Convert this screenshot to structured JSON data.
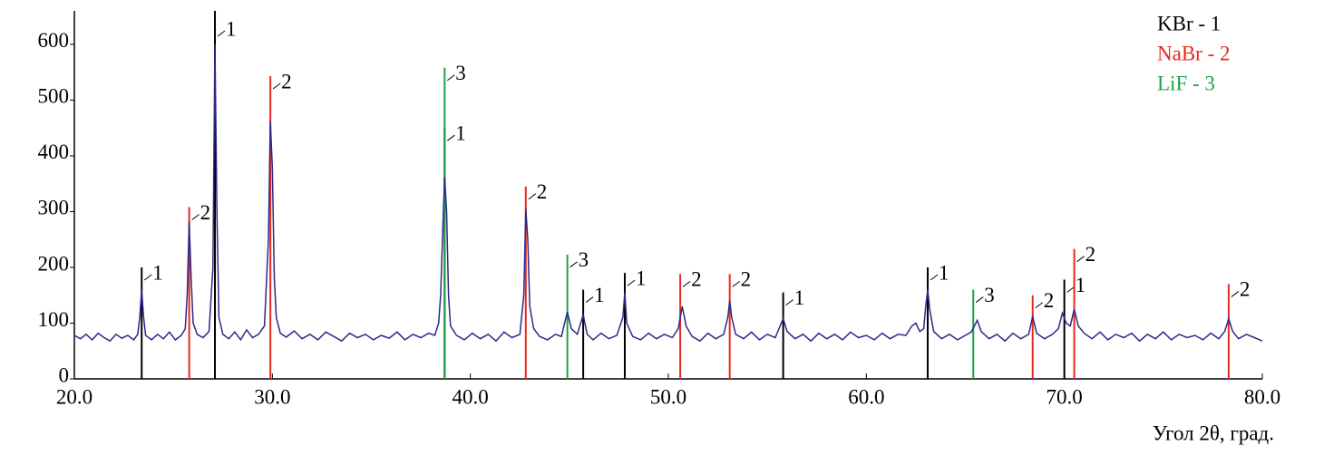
{
  "chart_data": {
    "type": "line",
    "xlabel": "Угол 2θ, град.",
    "xlim": [
      20,
      80
    ],
    "ylim": [
      0,
      660
    ],
    "xticks": [
      {
        "value": 20,
        "label": "20.0"
      },
      {
        "value": 30,
        "label": "30.0"
      },
      {
        "value": 40,
        "label": "40.0"
      },
      {
        "value": 50,
        "label": "50.0"
      },
      {
        "value": 60,
        "label": "60.0"
      },
      {
        "value": 70,
        "label": "70.0"
      },
      {
        "value": 80,
        "label": "80.0"
      }
    ],
    "yticks": [
      0,
      100,
      200,
      300,
      400,
      500,
      600
    ],
    "series": [
      {
        "color": "#2b2a86",
        "x": [
          20.0,
          20.3,
          20.6,
          20.9,
          21.2,
          21.5,
          21.8,
          22.1,
          22.4,
          22.7,
          23.0,
          23.2,
          23.3,
          23.4,
          23.5,
          23.6,
          23.9,
          24.2,
          24.5,
          24.8,
          25.1,
          25.4,
          25.6,
          25.7,
          25.8,
          25.9,
          26.0,
          26.2,
          26.5,
          26.8,
          27.0,
          27.1,
          27.2,
          27.3,
          27.5,
          27.8,
          28.1,
          28.4,
          28.7,
          29.0,
          29.3,
          29.6,
          29.8,
          29.9,
          30.0,
          30.1,
          30.2,
          30.4,
          30.7,
          31.1,
          31.5,
          31.9,
          32.3,
          32.7,
          33.1,
          33.5,
          33.9,
          34.3,
          34.7,
          35.1,
          35.5,
          35.9,
          36.3,
          36.7,
          37.1,
          37.5,
          37.9,
          38.2,
          38.4,
          38.5,
          38.6,
          38.7,
          38.8,
          38.9,
          39.0,
          39.3,
          39.7,
          40.1,
          40.5,
          40.9,
          41.3,
          41.7,
          42.1,
          42.5,
          42.7,
          42.8,
          42.9,
          43.0,
          43.2,
          43.5,
          43.9,
          44.3,
          44.6,
          44.9,
          45.1,
          45.4,
          45.7,
          45.9,
          46.2,
          46.6,
          47.0,
          47.4,
          47.7,
          47.8,
          47.9,
          48.2,
          48.6,
          49.0,
          49.4,
          49.8,
          50.2,
          50.5,
          50.7,
          50.9,
          51.2,
          51.6,
          52.0,
          52.4,
          52.8,
          53.0,
          53.1,
          53.2,
          53.4,
          53.8,
          54.2,
          54.6,
          55.0,
          55.4,
          55.7,
          55.8,
          56.0,
          56.4,
          56.8,
          57.2,
          57.6,
          58.0,
          58.4,
          58.8,
          59.2,
          59.6,
          60.0,
          60.4,
          60.8,
          61.2,
          61.6,
          62.0,
          62.3,
          62.5,
          62.7,
          62.9,
          63.0,
          63.1,
          63.2,
          63.4,
          63.8,
          64.2,
          64.6,
          65.0,
          65.3,
          65.6,
          65.8,
          66.2,
          66.6,
          67.0,
          67.4,
          67.8,
          68.2,
          68.4,
          68.6,
          69.0,
          69.4,
          69.7,
          69.9,
          70.1,
          70.3,
          70.5,
          70.7,
          71.0,
          71.4,
          71.8,
          72.2,
          72.6,
          73.0,
          73.4,
          73.8,
          74.2,
          74.6,
          75.0,
          75.4,
          75.8,
          76.2,
          76.6,
          77.0,
          77.4,
          77.8,
          78.1,
          78.3,
          78.5,
          78.8,
          79.2,
          79.6,
          80.0
        ],
        "values": [
          78,
          72,
          80,
          70,
          82,
          74,
          68,
          80,
          73,
          78,
          70,
          80,
          110,
          160,
          110,
          78,
          70,
          80,
          72,
          84,
          70,
          78,
          90,
          150,
          282,
          180,
          100,
          80,
          74,
          85,
          200,
          600,
          300,
          110,
          80,
          72,
          84,
          70,
          88,
          74,
          80,
          95,
          250,
          462,
          380,
          180,
          110,
          82,
          75,
          86,
          72,
          80,
          70,
          84,
          76,
          68,
          82,
          74,
          80,
          70,
          78,
          73,
          84,
          70,
          80,
          74,
          82,
          78,
          100,
          150,
          260,
          362,
          300,
          150,
          95,
          78,
          70,
          82,
          72,
          80,
          68,
          84,
          74,
          80,
          150,
          305,
          250,
          130,
          90,
          76,
          70,
          80,
          76,
          120,
          90,
          80,
          115,
          80,
          70,
          82,
          72,
          78,
          110,
          155,
          100,
          76,
          70,
          82,
          72,
          80,
          74,
          90,
          130,
          95,
          76,
          68,
          82,
          72,
          80,
          110,
          140,
          110,
          80,
          72,
          84,
          70,
          80,
          74,
          100,
          108,
          85,
          72,
          80,
          68,
          82,
          72,
          80,
          70,
          84,
          74,
          78,
          70,
          82,
          72,
          80,
          78,
          95,
          100,
          85,
          90,
          130,
          160,
          125,
          85,
          72,
          80,
          70,
          78,
          84,
          105,
          85,
          72,
          80,
          68,
          82,
          72,
          80,
          112,
          82,
          72,
          80,
          90,
          118,
          100,
          95,
          125,
          95,
          82,
          72,
          84,
          70,
          80,
          74,
          82,
          68,
          80,
          72,
          84,
          70,
          80,
          74,
          78,
          70,
          82,
          72,
          85,
          108,
          85,
          72,
          80,
          74,
          68
        ]
      }
    ],
    "references": [
      {
        "name": "KBr - 1",
        "label": "1",
        "color": "#000000",
        "positions": [
          23.4,
          27.1,
          38.7,
          45.7,
          47.8,
          55.8,
          63.1,
          70.0
        ],
        "heights": [
          200,
          660,
          450,
          160,
          190,
          155,
          200,
          178
        ]
      },
      {
        "name": "NaBr - 2",
        "label": "2",
        "color": "#e8281e",
        "positions": [
          25.8,
          29.9,
          42.8,
          50.6,
          53.1,
          68.4,
          70.5,
          78.3
        ],
        "heights": [
          308,
          543,
          345,
          188,
          188,
          150,
          233,
          170
        ]
      },
      {
        "name": "LiF - 3",
        "label": "3",
        "color": "#1fa345",
        "positions": [
          38.7,
          44.9,
          65.4
        ],
        "heights": [
          558,
          223,
          160
        ]
      }
    ]
  }
}
